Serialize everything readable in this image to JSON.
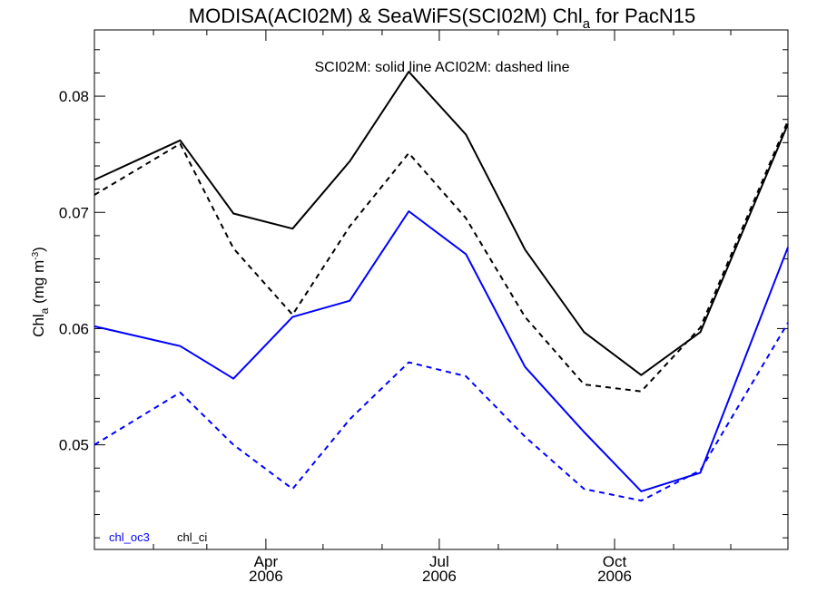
{
  "chart_data": {
    "type": "line",
    "title": {
      "main": "MODISA(ACI02M) & SeaWiFS(SCI02M)  Chl",
      "subscript": "a",
      "tail": " for PacN15"
    },
    "annotation": "SCI02M: solid line   ACI02M: dashed line",
    "ylabel": {
      "main": "Chl",
      "subscript": "a",
      "unit_pre": " (mg m",
      "unit_sup": "-3",
      "unit_post": ")"
    },
    "ylim": [
      0.041,
      0.0857
    ],
    "yticks": [
      {
        "value": 0.05,
        "label": "0.05"
      },
      {
        "value": 0.06,
        "label": "0.06"
      },
      {
        "value": 0.07,
        "label": "0.07"
      },
      {
        "value": 0.08,
        "label": "0.08"
      }
    ],
    "xlim": [
      "2006-01-01",
      "2006-12-31"
    ],
    "xticks": [
      {
        "date": "2006-04-01",
        "month": "Apr",
        "year": "2006"
      },
      {
        "date": "2006-07-01",
        "month": "Jul",
        "year": "2006"
      },
      {
        "date": "2006-10-01",
        "month": "Oct",
        "year": "2006"
      }
    ],
    "grid": false,
    "legend_position": "bottom-left",
    "legend": [
      {
        "label": "chl_oc3",
        "color": "#0000ff"
      },
      {
        "label": "chl_ci",
        "color": "#000000"
      }
    ],
    "x": [
      "2006-01-01",
      "2006-02-15",
      "2006-03-15",
      "2006-04-15",
      "2006-05-15",
      "2006-06-15",
      "2006-07-15",
      "2006-08-15",
      "2006-09-15",
      "2006-10-15",
      "2006-11-15",
      "2006-12-31"
    ],
    "series": [
      {
        "product": "SCI02M",
        "variable": "chl_ci",
        "color": "#000000",
        "dash": false,
        "values": [
          0.0728,
          0.0762,
          0.0699,
          0.0686,
          0.0744,
          0.0821,
          0.0767,
          0.0668,
          0.0597,
          0.056,
          0.0597,
          0.0776
        ]
      },
      {
        "product": "ACI02M",
        "variable": "chl_ci",
        "color": "#000000",
        "dash": true,
        "values": [
          0.0715,
          0.0759,
          0.0669,
          0.0612,
          0.0688,
          0.0751,
          0.0695,
          0.061,
          0.0552,
          0.0546,
          0.0601,
          0.0779
        ]
      },
      {
        "product": "SCI02M",
        "variable": "chl_oc3",
        "color": "#0000ff",
        "dash": false,
        "values": [
          0.0602,
          0.0585,
          0.0557,
          0.061,
          0.0624,
          0.0701,
          0.0664,
          0.0567,
          0.0511,
          0.046,
          0.0476,
          0.067
        ]
      },
      {
        "product": "ACI02M",
        "variable": "chl_oc3",
        "color": "#0000ff",
        "dash": true,
        "values": [
          0.05,
          0.0545,
          0.05,
          0.0462,
          0.0522,
          0.0571,
          0.0559,
          0.0507,
          0.0462,
          0.0452,
          0.0478,
          0.0605
        ]
      }
    ]
  }
}
